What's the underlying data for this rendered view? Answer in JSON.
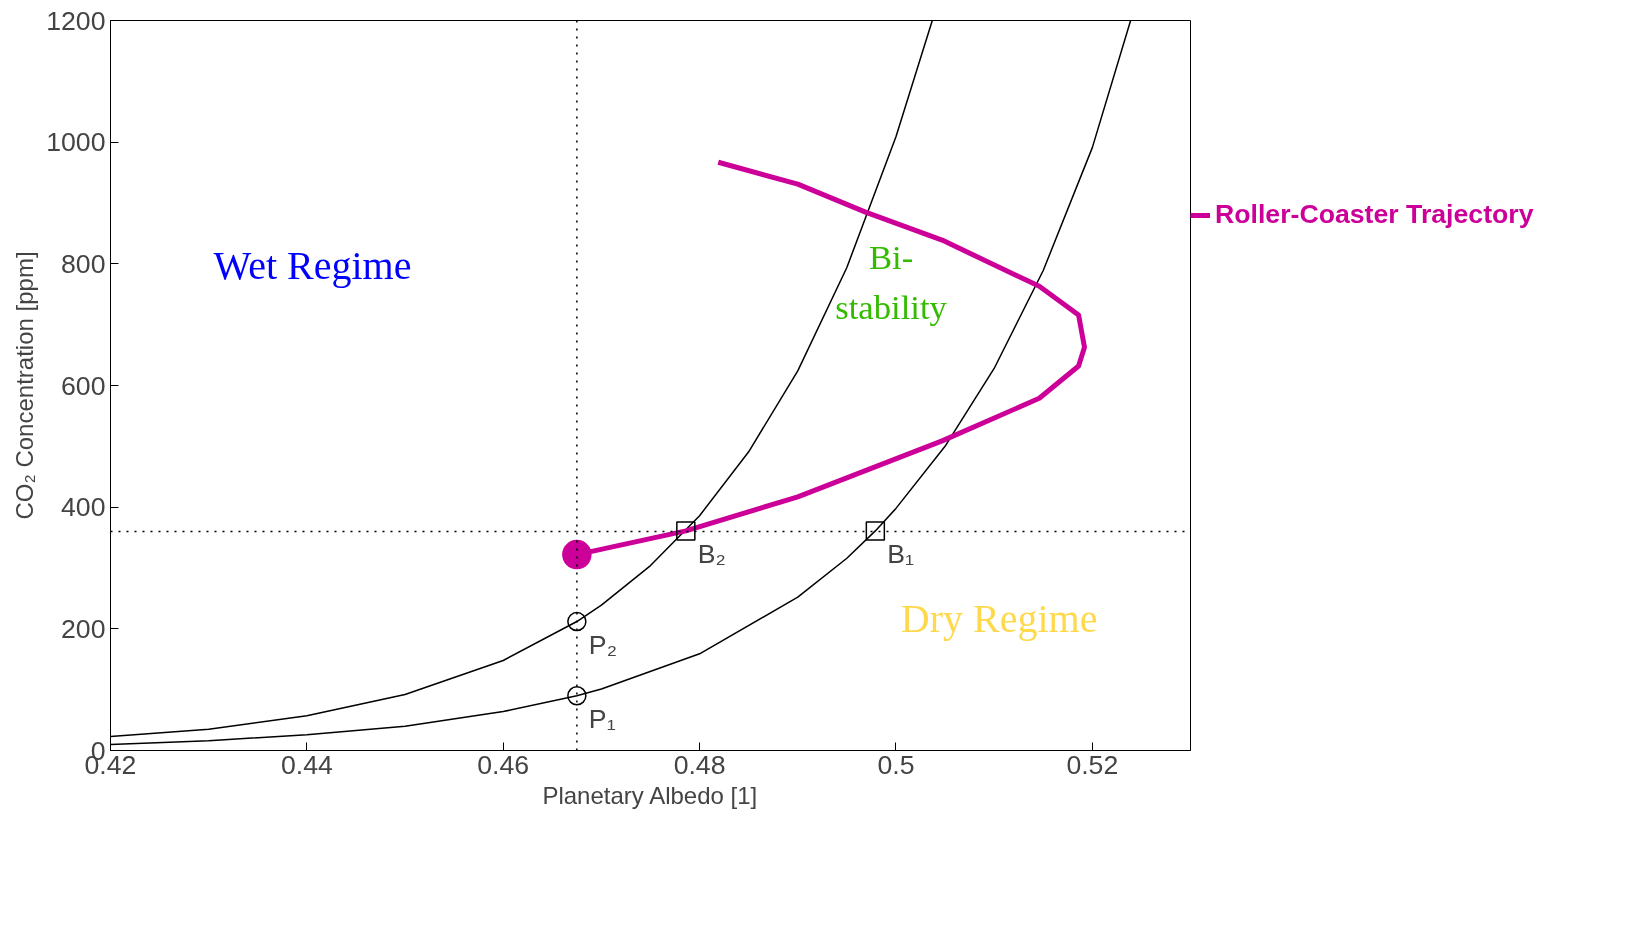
{
  "chart_data": {
    "type": "line",
    "xlabel": "Planetary Albedo [1]",
    "ylabel": "CO₂ Concentration [ppm]",
    "xlim": [
      0.42,
      0.53
    ],
    "ylim": [
      0,
      1200
    ],
    "xticks": [
      0.42,
      0.44,
      0.46,
      0.48,
      {
        "value": 0.5,
        "label": "0.5"
      },
      0.52
    ],
    "yticks": [
      0,
      200,
      400,
      600,
      800,
      1000,
      1200
    ],
    "grid": false,
    "legend": "right",
    "line_style": "solid",
    "series": [
      {
        "color": "#000000",
        "x": [
          0.42,
          0.43,
          0.44,
          0.45,
          0.46,
          0.4675,
          0.47,
          0.475,
          0.48,
          0.485,
          0.49,
          0.495,
          0.5,
          0.5037
        ],
        "values": [
          23,
          35,
          57,
          92,
          148,
          212,
          239,
          304,
          386,
          491,
          624,
          794,
          1009,
          1200
        ]
      },
      {
        "color": "#000000",
        "x": [
          0.42,
          0.43,
          0.44,
          0.45,
          0.46,
          0.4675,
          0.47,
          0.48,
          0.49,
          0.495,
          0.4979,
          0.5,
          0.505,
          0.51,
          0.515,
          0.52,
          0.5239
        ],
        "values": [
          10,
          16,
          26,
          40,
          64,
          90,
          101,
          159,
          252,
          316,
          361,
          398,
          500,
          628,
          789,
          991,
          1200
        ]
      },
      {
        "name": "Roller-Coaster Trajectory",
        "color": "#cc0099",
        "x": [
          0.4675,
          0.4786,
          0.49,
          0.5047,
          0.5146,
          0.5186,
          0.5192,
          0.5186,
          0.5146,
          0.5047,
          0.4969,
          0.49,
          0.4819
        ],
        "values": [
          322,
          361,
          417,
          509,
          579,
          632,
          663,
          716,
          763,
          839,
          885,
          931,
          967
        ]
      },
      {
        "type": "scatter",
        "color": "#cc0099",
        "marker": "circle",
        "x": [
          0.4675
        ],
        "values": [
          322
        ]
      },
      {
        "type": "scatter",
        "color": "#000000",
        "marker": "circle",
        "x": [
          0.4675,
          0.4675
        ],
        "values": [
          90,
          212
        ]
      },
      {
        "type": "scatter",
        "color": "#000000",
        "marker": "square",
        "x": [
          0.4979,
          0.4786
        ],
        "values": [
          361,
          361
        ]
      }
    ],
    "ref_lines": [
      {
        "axis": "x",
        "value": 0.4675,
        "line_style": "dotted",
        "color": "#000000"
      },
      {
        "axis": "y",
        "value": 360,
        "line_style": "dotted",
        "color": "#000000"
      }
    ],
    "annotations": [
      {
        "text": "P₁",
        "x": 0.4675,
        "y": 90
      },
      {
        "text": "P₂",
        "x": 0.4675,
        "y": 212
      },
      {
        "text": "B₁",
        "x": 0.4979,
        "y": 361
      },
      {
        "text": "B₂",
        "x": 0.4786,
        "y": 361
      },
      "Wet Regime",
      "Dry Regime",
      "Bi-\nstability"
    ]
  }
}
